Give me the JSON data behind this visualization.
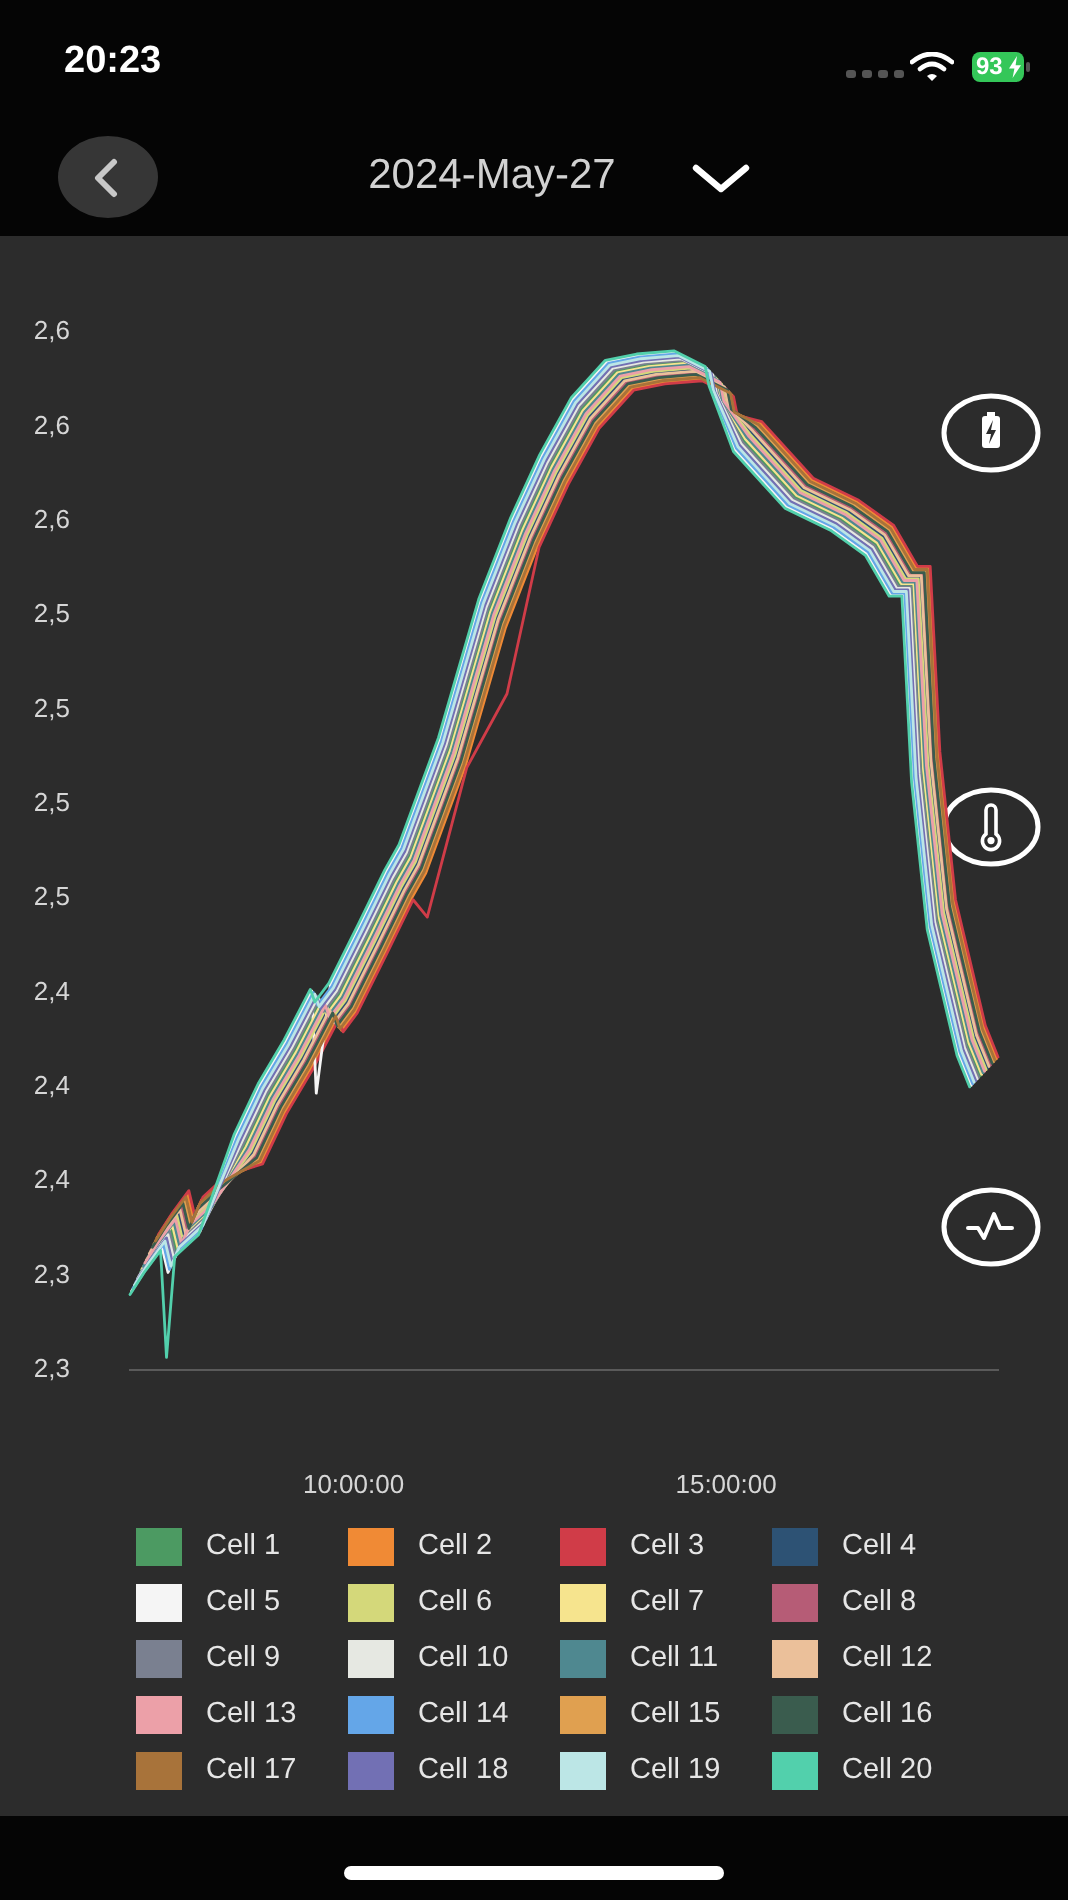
{
  "chart_data": {
    "type": "line",
    "title": "2024-May-27",
    "annotations": [
      "20:23",
      "93"
    ],
    "xlim": [
      7.0,
      18.65
    ],
    "xticks": [
      {
        "value": 10,
        "label": "10:00:00"
      },
      {
        "value": 15,
        "label": "15:00:00"
      }
    ],
    "ylim": [
      2.3,
      2.63
    ],
    "yticks": [
      {
        "value": 2.3,
        "label": "2,3"
      },
      {
        "value": 2.33,
        "label": "2,3"
      },
      {
        "value": 2.36,
        "label": "2,4"
      },
      {
        "value": 2.39,
        "label": "2,4"
      },
      {
        "value": 2.42,
        "label": "2,4"
      },
      {
        "value": 2.45,
        "label": "2,5"
      },
      {
        "value": 2.48,
        "label": "2,5"
      },
      {
        "value": 2.51,
        "label": "2,5"
      },
      {
        "value": 2.54,
        "label": "2,5"
      },
      {
        "value": 2.57,
        "label": "2,6"
      },
      {
        "value": 2.6,
        "label": "2,6"
      },
      {
        "value": 2.63,
        "label": "2,6"
      }
    ],
    "legend": "bottom",
    "series": [
      {
        "name": "Cell 1",
        "color": "#4c9a62",
        "x": [
          7.14,
          7.33,
          7.55,
          7.63,
          7.74,
          8.06,
          8.54,
          8.86,
          9.21,
          9.56,
          9.62,
          9.81,
          10.21,
          10.56,
          10.75,
          11.28,
          11.82,
          12.25,
          12.64,
          13.06,
          13.52,
          13.94,
          14.44,
          14.86,
          14.91,
          15.24,
          15.93,
          16.54,
          17.01,
          17.33,
          17.5,
          17.63,
          17.84,
          18.04,
          18.24,
          18.41
        ],
        "values": [
          2.331,
          2.338,
          2.345,
          2.337,
          2.343,
          2.35,
          2.3715,
          2.3875,
          2.4015,
          2.4175,
          2.4135,
          2.4195,
          2.4385,
          2.4555,
          2.4635,
          2.4975,
          2.5415,
          2.5675,
          2.5875,
          2.6055,
          2.6175,
          2.6195,
          2.6205,
          2.6155,
          2.6095,
          2.5955,
          2.5775,
          2.5705,
          2.5625,
          2.5495,
          2.5495,
          2.4905,
          2.4435,
          2.4235,
          2.4035,
          2.3935
        ]
      },
      {
        "name": "Cell 2",
        "color": "#f08a35",
        "x": [
          7.36,
          7.55,
          7.77,
          7.85,
          7.96,
          8.28,
          8.76,
          9.08,
          9.43,
          9.78,
          9.84,
          10.03,
          10.43,
          10.78,
          10.97,
          11.5,
          12.04,
          12.47,
          12.86,
          13.28,
          13.74,
          14.16,
          14.66,
          15.08,
          15.13,
          15.46,
          16.15,
          16.76,
          17.23,
          17.55,
          17.72,
          17.85,
          18.06,
          18.26,
          18.46,
          18.63
        ],
        "values": [
          2.342,
          2.349,
          2.356,
          2.348,
          2.354,
          2.361,
          2.366,
          2.382,
          2.396,
          2.412,
          2.408,
          2.414,
          2.433,
          2.45,
          2.458,
          2.492,
          2.536,
          2.562,
          2.582,
          2.6,
          2.612,
          2.614,
          2.615,
          2.61,
          2.604,
          2.601,
          2.583,
          2.576,
          2.568,
          2.555,
          2.555,
          2.496,
          2.449,
          2.429,
          2.409,
          2.399
        ]
      },
      {
        "name": "Cell 3",
        "color": "#d03c48",
        "x": [
          7.38,
          7.57,
          7.79,
          7.87,
          7.98,
          8.3,
          8.78,
          9.1,
          9.45,
          9.8,
          9.86,
          10.05,
          10.45,
          10.8,
          10.99,
          11.52,
          12.06,
          12.49,
          12.88,
          13.3,
          13.76,
          14.18,
          14.68,
          15.1,
          15.15,
          15.48,
          16.17,
          16.78,
          17.25,
          17.57,
          17.74,
          17.87,
          18.08,
          18.28,
          18.48,
          18.65
        ],
        "values": [
          2.343,
          2.35,
          2.357,
          2.349,
          2.355,
          2.362,
          2.3655,
          2.3815,
          2.3955,
          2.4115,
          2.4075,
          2.4135,
          2.4325,
          2.4495,
          2.444,
          2.4915,
          2.515,
          2.5615,
          2.5815,
          2.5995,
          2.6115,
          2.6135,
          2.6145,
          2.6095,
          2.6035,
          2.6015,
          2.5835,
          2.5765,
          2.5685,
          2.5555,
          2.5555,
          2.4965,
          2.4495,
          2.4295,
          2.4095,
          2.3995
        ]
      },
      {
        "name": "Cell 4",
        "color": "#2d5274",
        "x": [
          7.24,
          7.43,
          7.65,
          7.73,
          7.84,
          8.16,
          8.64,
          8.96,
          9.31,
          9.66,
          9.72,
          9.91,
          10.31,
          10.66,
          10.85,
          11.38,
          11.92,
          12.35,
          12.74,
          13.16,
          13.62,
          14.04,
          14.54,
          14.96,
          15.01,
          15.34,
          16.03,
          16.64,
          17.11,
          17.43,
          17.6,
          17.73,
          17.94,
          18.14,
          18.34,
          18.51
        ],
        "values": [
          2.336,
          2.343,
          2.35,
          2.342,
          2.348,
          2.355,
          2.369,
          2.385,
          2.399,
          2.415,
          2.411,
          2.417,
          2.436,
          2.453,
          2.461,
          2.495,
          2.539,
          2.565,
          2.585,
          2.603,
          2.615,
          2.617,
          2.618,
          2.613,
          2.607,
          2.598,
          2.58,
          2.573,
          2.565,
          2.552,
          2.552,
          2.493,
          2.446,
          2.426,
          2.406,
          2.396
        ]
      },
      {
        "name": "Cell 5",
        "color": "#f5f5f5",
        "x": [
          7.02,
          7.21,
          7.43,
          7.51,
          7.62,
          7.94,
          8.42,
          8.74,
          9.09,
          9.44,
          9.5,
          9.69,
          10.09,
          10.44,
          10.63,
          11.16,
          11.7,
          12.13,
          12.52,
          12.94,
          13.4,
          13.82,
          14.32,
          14.74,
          14.79,
          15.12,
          15.81,
          16.42,
          16.89,
          17.21,
          17.38,
          17.51,
          17.72,
          17.92,
          18.12,
          18.29
        ],
        "values": [
          2.325,
          2.332,
          2.339,
          2.331,
          2.337,
          2.344,
          2.3745,
          2.3905,
          2.4045,
          2.4205,
          2.388,
          2.4225,
          2.4415,
          2.4585,
          2.4665,
          2.5005,
          2.5445,
          2.5705,
          2.5905,
          2.6085,
          2.6205,
          2.6225,
          2.6235,
          2.6185,
          2.6125,
          2.5925,
          2.5745,
          2.5675,
          2.5595,
          2.5465,
          2.5465,
          2.4875,
          2.4405,
          2.4205,
          2.4005,
          2.3905
        ]
      },
      {
        "name": "Cell 6",
        "color": "#d4d87a",
        "x": [
          7.22,
          7.41,
          7.63,
          7.71,
          7.82,
          8.14,
          8.62,
          8.94,
          9.29,
          9.64,
          9.7,
          9.89,
          10.29,
          10.64,
          10.83,
          11.36,
          11.9,
          12.33,
          12.72,
          13.14,
          13.6,
          14.02,
          14.52,
          14.94,
          14.99,
          15.32,
          16.01,
          16.62,
          17.09,
          17.41,
          17.58,
          17.71,
          17.92,
          18.12,
          18.32,
          18.49
        ],
        "values": [
          2.335,
          2.342,
          2.349,
          2.341,
          2.347,
          2.354,
          2.3695,
          2.3855,
          2.3995,
          2.4155,
          2.4115,
          2.4175,
          2.4365,
          2.4535,
          2.4615,
          2.4955,
          2.5395,
          2.5655,
          2.5855,
          2.6035,
          2.6155,
          2.6175,
          2.6185,
          2.6135,
          2.6075,
          2.5975,
          2.5795,
          2.5725,
          2.5645,
          2.5515,
          2.5515,
          2.4925,
          2.4455,
          2.4255,
          2.4055,
          2.3955
        ]
      },
      {
        "name": "Cell 7",
        "color": "#f6e48e",
        "x": [
          7.16,
          7.35,
          7.57,
          7.65,
          7.76,
          8.08,
          8.56,
          8.88,
          9.23,
          9.58,
          9.64,
          9.83,
          10.23,
          10.58,
          10.77,
          11.3,
          11.84,
          12.27,
          12.66,
          13.08,
          13.54,
          13.96,
          14.46,
          14.88,
          14.93,
          15.26,
          15.95,
          16.56,
          17.03,
          17.35,
          17.52,
          17.65,
          17.86,
          18.06,
          18.26,
          18.43
        ],
        "values": [
          2.332,
          2.339,
          2.346,
          2.338,
          2.344,
          2.351,
          2.371,
          2.387,
          2.401,
          2.417,
          2.413,
          2.419,
          2.438,
          2.455,
          2.463,
          2.497,
          2.541,
          2.567,
          2.587,
          2.605,
          2.617,
          2.619,
          2.62,
          2.615,
          2.609,
          2.596,
          2.578,
          2.571,
          2.563,
          2.55,
          2.55,
          2.491,
          2.444,
          2.424,
          2.404,
          2.394
        ]
      },
      {
        "name": "Cell 8",
        "color": "#b65c76",
        "x": [
          7.28,
          7.47,
          7.69,
          7.77,
          7.88,
          8.2,
          8.68,
          9.0,
          9.35,
          9.7,
          9.76,
          9.95,
          10.35,
          10.7,
          10.89,
          11.42,
          11.96,
          12.39,
          12.78,
          13.2,
          13.66,
          14.08,
          14.58,
          15.0,
          15.05,
          15.38,
          16.07,
          16.68,
          17.15,
          17.47,
          17.64,
          17.77,
          17.98,
          18.18,
          18.38,
          18.55
        ],
        "values": [
          2.338,
          2.345,
          2.352,
          2.344,
          2.35,
          2.357,
          2.368,
          2.384,
          2.398,
          2.414,
          2.41,
          2.416,
          2.435,
          2.452,
          2.46,
          2.494,
          2.538,
          2.564,
          2.584,
          2.602,
          2.614,
          2.616,
          2.617,
          2.612,
          2.606,
          2.599,
          2.581,
          2.574,
          2.566,
          2.553,
          2.553,
          2.494,
          2.447,
          2.427,
          2.407,
          2.397
        ]
      },
      {
        "name": "Cell 9",
        "color": "#7a8090",
        "x": [
          7.12,
          7.31,
          7.53,
          7.61,
          7.72,
          8.04,
          8.52,
          8.84,
          9.19,
          9.54,
          9.6,
          9.79,
          10.19,
          10.54,
          10.73,
          11.26,
          11.8,
          12.23,
          12.62,
          13.04,
          13.5,
          13.92,
          14.42,
          14.84,
          14.89,
          15.22,
          15.91,
          16.52,
          16.99,
          17.31,
          17.48,
          17.61,
          17.82,
          18.02,
          18.22,
          18.39
        ],
        "values": [
          2.33,
          2.337,
          2.344,
          2.336,
          2.342,
          2.349,
          2.372,
          2.388,
          2.402,
          2.418,
          2.414,
          2.42,
          2.439,
          2.456,
          2.464,
          2.498,
          2.542,
          2.568,
          2.588,
          2.606,
          2.618,
          2.62,
          2.621,
          2.616,
          2.61,
          2.595,
          2.577,
          2.57,
          2.562,
          2.549,
          2.549,
          2.49,
          2.443,
          2.423,
          2.403,
          2.393
        ]
      },
      {
        "name": "Cell 10",
        "color": "#e6e8e2",
        "x": [
          7.1,
          7.29,
          7.51,
          7.59,
          7.7,
          8.02,
          8.5,
          8.82,
          9.17,
          9.52,
          9.58,
          9.77,
          10.17,
          10.52,
          10.71,
          11.24,
          11.78,
          12.21,
          12.6,
          13.02,
          13.48,
          13.9,
          14.4,
          14.82,
          14.87,
          15.2,
          15.89,
          16.5,
          16.97,
          17.29,
          17.46,
          17.59,
          17.8,
          18.0,
          18.2,
          18.37
        ],
        "values": [
          2.329,
          2.336,
          2.343,
          2.335,
          2.341,
          2.348,
          2.3725,
          2.3885,
          2.4025,
          2.4185,
          2.4145,
          2.4205,
          2.4395,
          2.4565,
          2.4645,
          2.4985,
          2.5425,
          2.5685,
          2.5885,
          2.6065,
          2.6185,
          2.6205,
          2.6215,
          2.6165,
          2.6105,
          2.5945,
          2.5765,
          2.5695,
          2.5615,
          2.5485,
          2.5485,
          2.4895,
          2.4425,
          2.4225,
          2.4025,
          2.3925
        ]
      },
      {
        "name": "Cell 11",
        "color": "#4f8890",
        "x": [
          7.18,
          7.37,
          7.59,
          7.67,
          7.78,
          8.1,
          8.58,
          8.9,
          9.25,
          9.6,
          9.66,
          9.85,
          10.25,
          10.6,
          10.79,
          11.32,
          11.86,
          12.29,
          12.68,
          13.1,
          13.56,
          13.98,
          14.48,
          14.9,
          14.95,
          15.28,
          15.97,
          16.58,
          17.05,
          17.37,
          17.54,
          17.67,
          17.88,
          18.08,
          18.28,
          18.45
        ],
        "values": [
          2.333,
          2.34,
          2.347,
          2.339,
          2.345,
          2.352,
          2.3705,
          2.3865,
          2.4005,
          2.4165,
          2.4125,
          2.4185,
          2.4375,
          2.4545,
          2.4625,
          2.4965,
          2.5405,
          2.5665,
          2.5865,
          2.6045,
          2.6165,
          2.6185,
          2.6195,
          2.6145,
          2.6085,
          2.5965,
          2.5785,
          2.5715,
          2.5635,
          2.5505,
          2.5505,
          2.4915,
          2.4445,
          2.4245,
          2.4045,
          2.3945
        ]
      },
      {
        "name": "Cell 12",
        "color": "#ebc09a",
        "x": [
          7.26,
          7.45,
          7.67,
          7.75,
          7.86,
          8.18,
          8.66,
          8.98,
          9.33,
          9.68,
          9.74,
          9.93,
          10.33,
          10.68,
          10.87,
          11.4,
          11.94,
          12.37,
          12.76,
          13.18,
          13.64,
          14.06,
          14.56,
          14.98,
          15.03,
          15.36,
          16.05,
          16.66,
          17.13,
          17.45,
          17.62,
          17.75,
          17.96,
          18.16,
          18.36,
          18.53
        ],
        "values": [
          2.337,
          2.344,
          2.351,
          2.343,
          2.349,
          2.356,
          2.3685,
          2.3845,
          2.3985,
          2.4145,
          2.4105,
          2.4165,
          2.4355,
          2.4525,
          2.4605,
          2.4945,
          2.5385,
          2.5645,
          2.5845,
          2.6025,
          2.6145,
          2.6165,
          2.6175,
          2.6125,
          2.6065,
          2.5985,
          2.5805,
          2.5735,
          2.5655,
          2.5525,
          2.5525,
          2.4935,
          2.4465,
          2.4265,
          2.4065,
          2.3965
        ]
      },
      {
        "name": "Cell 13",
        "color": "#eca0a8",
        "x": [
          7.2,
          7.39,
          7.61,
          7.69,
          7.8,
          8.12,
          8.6,
          8.92,
          9.27,
          9.62,
          9.68,
          9.87,
          10.27,
          10.62,
          10.81,
          11.34,
          11.88,
          12.31,
          12.7,
          13.12,
          13.58,
          14.0,
          14.5,
          14.92,
          14.97,
          15.3,
          15.99,
          16.6,
          17.07,
          17.39,
          17.56,
          17.69,
          17.9,
          18.1,
          18.3,
          18.47
        ],
        "values": [
          2.334,
          2.341,
          2.348,
          2.34,
          2.346,
          2.353,
          2.37,
          2.386,
          2.4,
          2.416,
          2.412,
          2.418,
          2.437,
          2.454,
          2.462,
          2.496,
          2.54,
          2.566,
          2.586,
          2.604,
          2.616,
          2.618,
          2.619,
          2.614,
          2.608,
          2.597,
          2.579,
          2.572,
          2.564,
          2.551,
          2.551,
          2.492,
          2.445,
          2.425,
          2.405,
          2.395
        ]
      },
      {
        "name": "Cell 14",
        "color": "#64a6e8",
        "x": [
          7.04,
          7.23,
          7.45,
          7.53,
          7.64,
          7.96,
          8.44,
          8.76,
          9.11,
          9.46,
          9.52,
          9.71,
          10.11,
          10.46,
          10.65,
          11.18,
          11.72,
          12.15,
          12.54,
          12.96,
          13.42,
          13.84,
          14.34,
          14.76,
          14.81,
          15.14,
          15.83,
          16.44,
          16.91,
          17.23,
          17.4,
          17.53,
          17.74,
          17.94,
          18.14,
          18.31
        ],
        "values": [
          2.326,
          2.333,
          2.34,
          2.332,
          2.338,
          2.345,
          2.374,
          2.39,
          2.404,
          2.42,
          2.416,
          2.422,
          2.441,
          2.458,
          2.466,
          2.5,
          2.544,
          2.57,
          2.59,
          2.608,
          2.62,
          2.622,
          2.623,
          2.618,
          2.612,
          2.593,
          2.575,
          2.568,
          2.56,
          2.547,
          2.547,
          2.488,
          2.441,
          2.421,
          2.401,
          2.391
        ]
      },
      {
        "name": "Cell 15",
        "color": "#e0a050",
        "x": [
          7.32,
          7.51,
          7.73,
          7.81,
          7.92,
          8.24,
          8.72,
          9.04,
          9.39,
          9.74,
          9.8,
          9.99,
          10.39,
          10.74,
          10.93,
          11.46,
          12.0,
          12.43,
          12.82,
          13.24,
          13.7,
          14.12,
          14.62,
          15.04,
          15.09,
          15.42,
          16.11,
          16.72,
          17.19,
          17.51,
          17.68,
          17.81,
          18.02,
          18.22,
          18.42,
          18.59
        ],
        "values": [
          2.34,
          2.347,
          2.354,
          2.346,
          2.352,
          2.359,
          2.367,
          2.383,
          2.397,
          2.413,
          2.409,
          2.415,
          2.434,
          2.451,
          2.459,
          2.493,
          2.537,
          2.563,
          2.583,
          2.601,
          2.613,
          2.615,
          2.616,
          2.611,
          2.605,
          2.6,
          2.582,
          2.575,
          2.567,
          2.554,
          2.554,
          2.495,
          2.448,
          2.428,
          2.408,
          2.398
        ]
      },
      {
        "name": "Cell 16",
        "color": "#3a5c4e",
        "x": [
          7.3,
          7.49,
          7.71,
          7.79,
          7.9,
          8.22,
          8.7,
          9.02,
          9.37,
          9.72,
          9.78,
          9.97,
          10.37,
          10.72,
          10.91,
          11.44,
          11.98,
          12.41,
          12.8,
          13.22,
          13.68,
          14.1,
          14.6,
          15.02,
          15.07,
          15.4,
          16.09,
          16.7,
          17.17,
          17.49,
          17.66,
          17.79,
          18.0,
          18.2,
          18.4,
          18.57
        ],
        "values": [
          2.339,
          2.346,
          2.353,
          2.345,
          2.351,
          2.358,
          2.3675,
          2.3835,
          2.3975,
          2.4135,
          2.4095,
          2.4155,
          2.4345,
          2.4515,
          2.4595,
          2.4935,
          2.5375,
          2.5635,
          2.5835,
          2.6015,
          2.6135,
          2.6155,
          2.6165,
          2.6115,
          2.6055,
          2.5995,
          2.5815,
          2.5745,
          2.5665,
          2.5535,
          2.5535,
          2.4945,
          2.4475,
          2.4275,
          2.4075,
          2.3975
        ]
      },
      {
        "name": "Cell 17",
        "color": "#a8733a",
        "x": [
          7.34,
          7.53,
          7.75,
          7.83,
          7.94,
          8.26,
          8.74,
          9.06,
          9.41,
          9.76,
          9.82,
          10.01,
          10.41,
          10.76,
          10.95,
          11.48,
          12.02,
          12.45,
          12.84,
          13.26,
          13.72,
          14.14,
          14.64,
          15.06,
          15.11,
          15.44,
          16.13,
          16.74,
          17.21,
          17.53,
          17.7,
          17.83,
          18.04,
          18.24,
          18.44,
          18.61
        ],
        "values": [
          2.341,
          2.348,
          2.355,
          2.347,
          2.353,
          2.36,
          2.3665,
          2.3825,
          2.3965,
          2.4125,
          2.4085,
          2.4145,
          2.4335,
          2.4505,
          2.4585,
          2.4925,
          2.5365,
          2.5625,
          2.5825,
          2.6005,
          2.6125,
          2.6145,
          2.6155,
          2.6105,
          2.6045,
          2.6005,
          2.5825,
          2.5755,
          2.5675,
          2.5545,
          2.5545,
          2.4955,
          2.4485,
          2.4285,
          2.4085,
          2.3985
        ]
      },
      {
        "name": "Cell 18",
        "color": "#7270b4",
        "x": [
          7.08,
          7.27,
          7.49,
          7.57,
          7.68,
          8.0,
          8.48,
          8.8,
          9.15,
          9.5,
          9.56,
          9.75,
          10.15,
          10.5,
          10.69,
          11.22,
          11.76,
          12.19,
          12.58,
          13.0,
          13.46,
          13.88,
          14.38,
          14.8,
          14.85,
          15.18,
          15.87,
          16.48,
          16.95,
          17.27,
          17.44,
          17.57,
          17.78,
          17.98,
          18.18,
          18.35
        ],
        "values": [
          2.328,
          2.335,
          2.342,
          2.334,
          2.34,
          2.347,
          2.373,
          2.389,
          2.403,
          2.419,
          2.415,
          2.421,
          2.44,
          2.457,
          2.465,
          2.499,
          2.543,
          2.569,
          2.589,
          2.607,
          2.619,
          2.621,
          2.622,
          2.617,
          2.611,
          2.594,
          2.576,
          2.569,
          2.561,
          2.548,
          2.548,
          2.489,
          2.442,
          2.422,
          2.402,
          2.392
        ]
      },
      {
        "name": "Cell 19",
        "color": "#bce6e6",
        "x": [
          7.06,
          7.25,
          7.47,
          7.55,
          7.66,
          7.98,
          8.46,
          8.78,
          9.13,
          9.48,
          9.54,
          9.73,
          10.13,
          10.48,
          10.67,
          11.2,
          11.74,
          12.17,
          12.56,
          12.98,
          13.44,
          13.86,
          14.36,
          14.78,
          14.83,
          15.16,
          15.85,
          16.46,
          16.93,
          17.25,
          17.42,
          17.55,
          17.76,
          17.96,
          18.16,
          18.33
        ],
        "values": [
          2.327,
          2.334,
          2.341,
          2.333,
          2.339,
          2.346,
          2.3735,
          2.3895,
          2.4035,
          2.4195,
          2.4155,
          2.4215,
          2.4405,
          2.4575,
          2.4655,
          2.4995,
          2.5435,
          2.5695,
          2.5895,
          2.6075,
          2.6195,
          2.6215,
          2.6225,
          2.6175,
          2.6115,
          2.5935,
          2.5755,
          2.5685,
          2.5605,
          2.5475,
          2.5475,
          2.4885,
          2.4415,
          2.4215,
          2.4015,
          2.3915
        ]
      },
      {
        "name": "Cell 20",
        "color": "#52d0ac",
        "x": [
          7.0,
          7.19,
          7.41,
          7.49,
          7.6,
          7.92,
          8.4,
          8.72,
          9.07,
          9.42,
          9.48,
          9.67,
          10.07,
          10.42,
          10.61,
          11.14,
          11.68,
          12.11,
          12.5,
          12.92,
          13.38,
          13.8,
          14.3,
          14.72,
          14.77,
          15.1,
          15.79,
          16.4,
          16.87,
          17.19,
          17.36,
          17.49,
          17.7,
          17.9,
          18.1,
          18.27
        ],
        "values": [
          2.324,
          2.331,
          2.338,
          2.304,
          2.336,
          2.343,
          2.375,
          2.391,
          2.405,
          2.421,
          2.417,
          2.423,
          2.442,
          2.459,
          2.467,
          2.501,
          2.545,
          2.571,
          2.591,
          2.609,
          2.621,
          2.623,
          2.624,
          2.619,
          2.613,
          2.592,
          2.574,
          2.567,
          2.559,
          2.546,
          2.546,
          2.487,
          2.44,
          2.42,
          2.4,
          2.39
        ]
      }
    ]
  }
}
